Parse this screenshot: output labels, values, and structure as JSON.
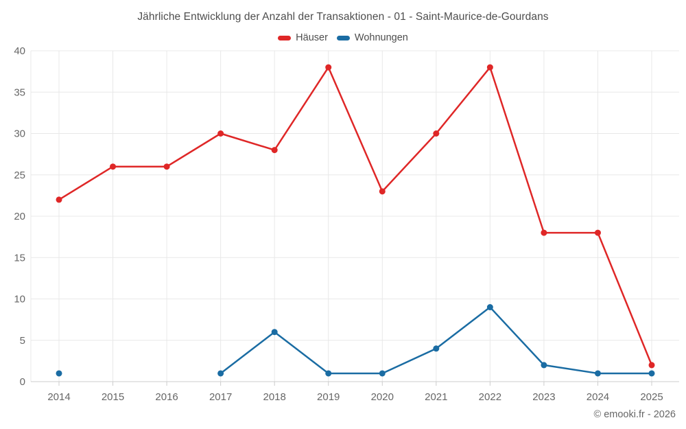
{
  "chart_data": {
    "type": "line",
    "title": "Jährliche Entwicklung der Anzahl der Transaktionen - 01 - Saint-Maurice-de-Gourdans",
    "categories": [
      "2014",
      "2015",
      "2016",
      "2017",
      "2018",
      "2019",
      "2020",
      "2021",
      "2022",
      "2023",
      "2024",
      "2025"
    ],
    "series": [
      {
        "name": "Häuser",
        "color": "#df2727",
        "values": [
          22,
          26,
          26,
          30,
          28,
          38,
          23,
          30,
          38,
          18,
          18,
          2
        ]
      },
      {
        "name": "Wohnungen",
        "color": "#1a6ca3",
        "values": [
          1,
          null,
          null,
          1,
          6,
          1,
          1,
          4,
          9,
          2,
          1,
          1
        ]
      }
    ],
    "xlabel": "",
    "ylabel": "",
    "ylim": [
      0,
      40
    ],
    "ytick_step": 5,
    "yticks": [
      0,
      5,
      10,
      15,
      20,
      25,
      30,
      35,
      40
    ],
    "grid": "on",
    "legend_position": "top"
  },
  "footer": {
    "credit": "© emooki.fr - 2026"
  },
  "colors": {
    "title_text": "#4d4d4d",
    "tick_text": "#666666",
    "grid": "#e8e8e8",
    "axis": "#cccccc",
    "background": "#ffffff"
  }
}
